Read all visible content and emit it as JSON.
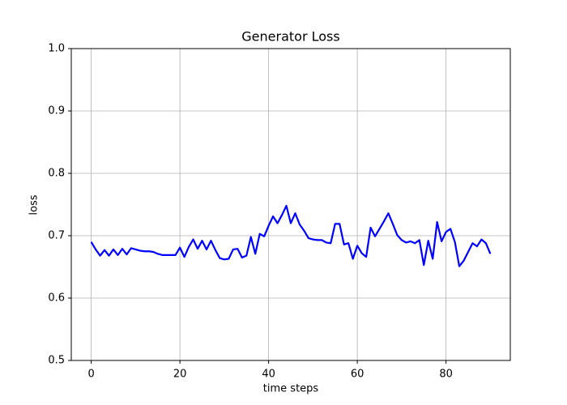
{
  "chart_data": {
    "type": "line",
    "title": "Generator Loss",
    "x_label": "time steps",
    "y_label": "loss",
    "x": [
      0,
      1,
      2,
      3,
      4,
      5,
      6,
      7,
      8,
      9,
      10,
      11,
      12,
      13,
      14,
      15,
      16,
      17,
      18,
      19,
      20,
      21,
      22,
      23,
      24,
      25,
      26,
      27,
      28,
      29,
      30,
      31,
      32,
      33,
      34,
      35,
      36,
      37,
      38,
      39,
      40,
      41,
      42,
      43,
      44,
      45,
      46,
      47,
      48,
      49,
      50,
      51,
      52,
      53,
      54,
      55,
      56,
      57,
      58,
      59,
      60,
      61,
      62,
      63,
      64,
      65,
      66,
      67,
      68,
      69,
      70,
      71,
      72,
      73,
      74,
      75,
      76,
      77,
      78,
      79,
      80,
      81,
      82,
      83,
      84,
      85,
      86,
      87,
      88,
      89,
      90
    ],
    "series": [
      {
        "color": "#0000ff",
        "values": [
          0.69,
          0.678,
          0.668,
          0.677,
          0.668,
          0.678,
          0.669,
          0.679,
          0.67,
          0.68,
          0.678,
          0.676,
          0.675,
          0.675,
          0.674,
          0.671,
          0.669,
          0.669,
          0.669,
          0.669,
          0.681,
          0.666,
          0.682,
          0.694,
          0.679,
          0.692,
          0.678,
          0.692,
          0.677,
          0.664,
          0.662,
          0.663,
          0.678,
          0.679,
          0.665,
          0.668,
          0.698,
          0.671,
          0.703,
          0.699,
          0.716,
          0.731,
          0.72,
          0.733,
          0.748,
          0.72,
          0.736,
          0.718,
          0.708,
          0.696,
          0.694,
          0.693,
          0.693,
          0.689,
          0.688,
          0.719,
          0.719,
          0.686,
          0.688,
          0.663,
          0.684,
          0.672,
          0.666,
          0.713,
          0.699,
          0.711,
          0.723,
          0.736,
          0.719,
          0.701,
          0.693,
          0.689,
          0.691,
          0.688,
          0.693,
          0.653,
          0.692,
          0.663,
          0.722,
          0.691,
          0.706,
          0.711,
          0.69,
          0.651,
          0.66,
          0.674,
          0.688,
          0.683,
          0.694,
          0.688,
          0.671
        ]
      }
    ],
    "xlim": [
      -4.5,
      94.5
    ],
    "xticks": [
      0,
      20,
      40,
      60,
      80
    ],
    "ylim": [
      0.5,
      1
    ],
    "yticks": [
      0.5,
      0.6,
      0.7,
      0.8,
      0.9,
      {
        "value": 1,
        "label": "1.0"
      }
    ],
    "grid": true
  }
}
